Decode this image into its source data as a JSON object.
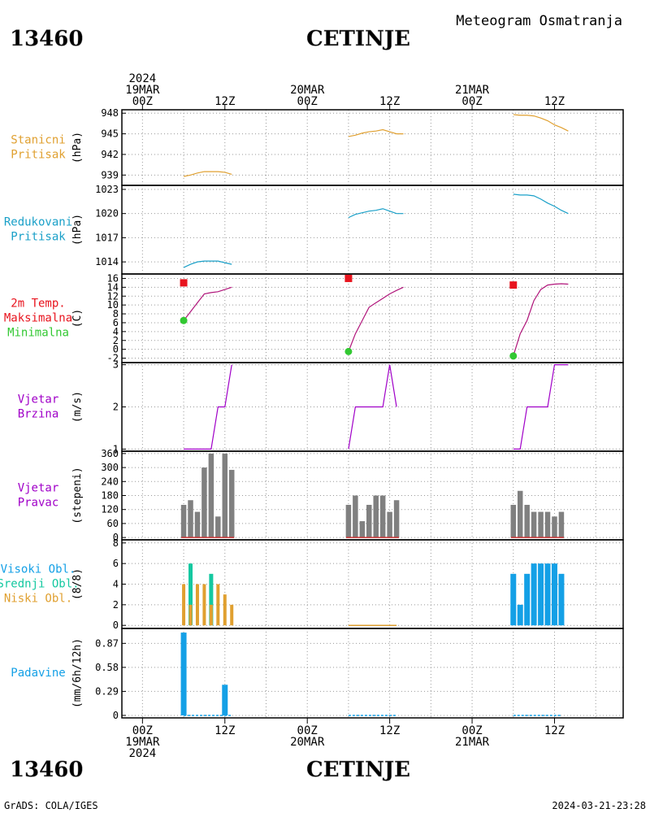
{
  "header": {
    "station_id": "13460",
    "station_name": "CETINJE",
    "subtitle": "Meteogram Osmatranja"
  },
  "footer": {
    "station_id": "13460",
    "station_name": "CETINJE",
    "credit": "GrADS: COLA/IGES",
    "timestamp": "2024-03-21-23:28"
  },
  "time_axis": {
    "ticks": [
      {
        "hour": 0,
        "labels": [
          "2024",
          "19MAR",
          "00Z"
        ],
        "bottom": [
          "00Z",
          "19MAR",
          "2024"
        ]
      },
      {
        "hour": 12,
        "labels": [
          "12Z"
        ],
        "bottom": [
          "12Z"
        ]
      },
      {
        "hour": 24,
        "labels": [
          "20MAR",
          "00Z"
        ],
        "bottom": [
          "00Z",
          "20MAR"
        ]
      },
      {
        "hour": 36,
        "labels": [
          "12Z"
        ],
        "bottom": [
          "12Z"
        ]
      },
      {
        "hour": 48,
        "labels": [
          "21MAR",
          "00Z"
        ],
        "bottom": [
          "00Z",
          "21MAR"
        ]
      },
      {
        "hour": 60,
        "labels": [
          "12Z"
        ],
        "bottom": [
          "12Z"
        ]
      }
    ],
    "range_hours": [
      -3,
      70
    ],
    "dotted_grid_hours": [
      0,
      6,
      12,
      18,
      24,
      30,
      36,
      42,
      48,
      54,
      60,
      66
    ]
  },
  "colors": {
    "station_pressure": "#e0a030",
    "reduced_pressure": "#1aa0c8",
    "temperature": "#b0147a",
    "max_temp": "#e8141e",
    "min_temp": "#32c832",
    "wind_speed": "#a000c8",
    "wind_dir_label": "#a000c8",
    "wind_dir_bar": "#808080",
    "high_clouds": "#14a0e6",
    "middle_clouds": "#14c8a0",
    "low_clouds": "#e0a030",
    "precip": "#14a0e6",
    "temp_label": "#e8141e"
  },
  "chart_data": [
    {
      "id": "station_pressure",
      "type": "line",
      "labels": [
        "Stanicni",
        "Pritisak"
      ],
      "ylabel": "(hPa)",
      "yticks": [
        939,
        942,
        945,
        948
      ],
      "ylim": [
        937.5,
        948.5
      ],
      "series": [
        {
          "x": [
            6,
            7,
            8,
            9,
            10,
            11,
            12,
            13
          ],
          "y": [
            938.8,
            939.0,
            939.3,
            939.5,
            939.5,
            939.5,
            939.4,
            939.1
          ]
        },
        {
          "x": [
            30,
            31,
            32,
            33,
            34,
            35,
            36,
            37,
            38
          ],
          "y": [
            944.6,
            944.8,
            945.1,
            945.3,
            945.4,
            945.6,
            945.3,
            945.0,
            945.0
          ]
        },
        {
          "x": [
            54,
            55,
            56,
            57,
            58,
            59,
            60,
            61,
            62
          ],
          "y": [
            947.8,
            947.7,
            947.7,
            947.6,
            947.3,
            946.9,
            946.3,
            945.9,
            945.4
          ]
        }
      ]
    },
    {
      "id": "reduced_pressure",
      "type": "line",
      "labels": [
        "Redukovani",
        "Pritisak"
      ],
      "ylabel": "(hPa)",
      "yticks": [
        1014,
        1017,
        1020,
        1023
      ],
      "ylim": [
        1012.5,
        1023.5
      ],
      "series": [
        {
          "x": [
            6,
            7,
            8,
            9,
            10,
            11,
            12,
            13
          ],
          "y": [
            1013.3,
            1013.7,
            1014.0,
            1014.1,
            1014.1,
            1014.1,
            1013.9,
            1013.7
          ]
        },
        {
          "x": [
            30,
            31,
            32,
            33,
            34,
            35,
            36,
            37,
            38
          ],
          "y": [
            1019.5,
            1019.9,
            1020.1,
            1020.3,
            1020.4,
            1020.6,
            1020.3,
            1020.0,
            1020.0
          ]
        },
        {
          "x": [
            54,
            55,
            56,
            57,
            58,
            59,
            60,
            61,
            62
          ],
          "y": [
            1022.4,
            1022.3,
            1022.3,
            1022.2,
            1021.8,
            1021.3,
            1020.9,
            1020.4,
            1020.0
          ]
        }
      ]
    },
    {
      "id": "temperature",
      "type": "line",
      "labels": [
        "2m Temp.",
        "Maksimalna",
        "Minimalna"
      ],
      "ylabel": "(C)",
      "yticks": [
        -2,
        0,
        2,
        4,
        6,
        8,
        10,
        12,
        14,
        16
      ],
      "ylim": [
        -3,
        17
      ],
      "series": [
        {
          "x": [
            6,
            7,
            8,
            9,
            10,
            11,
            12,
            13
          ],
          "y": [
            6.5,
            8.5,
            10.5,
            12.5,
            12.8,
            13.0,
            13.5,
            14.0
          ]
        },
        {
          "x": [
            30,
            31,
            32,
            33,
            34,
            35,
            36,
            37,
            38
          ],
          "y": [
            -0.5,
            3.5,
            6.5,
            9.5,
            10.5,
            11.5,
            12.5,
            13.3,
            14.0
          ]
        },
        {
          "x": [
            54,
            55,
            56,
            57,
            58,
            59,
            60,
            61,
            62
          ],
          "y": [
            -1.5,
            3.5,
            6.5,
            11.0,
            13.5,
            14.5,
            14.7,
            14.8,
            14.7
          ]
        }
      ],
      "max_points": [
        {
          "x": 6,
          "y": 15
        },
        {
          "x": 30,
          "y": 16
        },
        {
          "x": 54,
          "y": 14.5
        }
      ],
      "min_points": [
        {
          "x": 6,
          "y": 6.5
        },
        {
          "x": 30,
          "y": -0.5
        },
        {
          "x": 54,
          "y": -1.5
        }
      ]
    },
    {
      "id": "wind_speed",
      "type": "line",
      "labels": [
        "Vjetar",
        "Brzina"
      ],
      "ylabel": "(m/s)",
      "yticks": [
        1,
        2,
        3
      ],
      "ylim": [
        0.95,
        3.05
      ],
      "series": [
        {
          "x": [
            6,
            7,
            8,
            9,
            10,
            11,
            12,
            13
          ],
          "y": [
            1,
            1,
            1,
            1,
            1,
            2,
            2,
            3
          ]
        },
        {
          "x": [
            30,
            31,
            32,
            33,
            34,
            35,
            36,
            37
          ],
          "y": [
            1,
            2,
            2,
            2,
            2,
            2,
            3,
            2
          ]
        },
        {
          "x": [
            54,
            55,
            56,
            57,
            58,
            59,
            60,
            61,
            62
          ],
          "y": [
            1,
            1,
            2,
            2,
            2,
            2,
            3,
            3,
            3
          ]
        }
      ]
    },
    {
      "id": "wind_direction",
      "type": "bar",
      "labels": [
        "Vjetar",
        "Pravac"
      ],
      "ylabel": "(stepeni)",
      "yticks": [
        0,
        60,
        120,
        180,
        240,
        300,
        360
      ],
      "ylim": [
        -10,
        370
      ],
      "x": [
        6,
        7,
        8,
        9,
        10,
        11,
        12,
        13,
        30,
        31,
        32,
        33,
        34,
        35,
        36,
        37,
        54,
        55,
        56,
        57,
        58,
        59,
        60,
        61
      ],
      "values": [
        140,
        160,
        110,
        300,
        360,
        90,
        360,
        290,
        140,
        180,
        70,
        140,
        180,
        180,
        110,
        160,
        140,
        200,
        140,
        110,
        110,
        110,
        90,
        110
      ]
    },
    {
      "id": "clouds",
      "type": "bar",
      "labels": [
        "Visoki Obl.",
        "Srednji Obl.",
        "Niski Obl."
      ],
      "ylabel": "(8/8)",
      "yticks": [
        0,
        2,
        4,
        6,
        8
      ],
      "ylim": [
        -0.3,
        8.3
      ],
      "series": [
        {
          "name": "Visoki Obl.",
          "x": [
            54,
            55,
            56,
            57,
            58,
            59,
            60,
            61
          ],
          "values": [
            5,
            2,
            5,
            6,
            6,
            6,
            6,
            5
          ]
        },
        {
          "name": "Srednji Obl.",
          "x": [
            7,
            10
          ],
          "values": [
            6,
            5
          ]
        },
        {
          "name": "Niski Obl.",
          "x": [
            6,
            7,
            8,
            9,
            10,
            11,
            12,
            13
          ],
          "values": [
            4,
            2,
            4,
            4,
            2,
            4,
            3,
            2
          ]
        }
      ]
    },
    {
      "id": "precipitation",
      "type": "bar",
      "labels": [
        "Padavine"
      ],
      "ylabel": "(mm/6h/12h)",
      "yticks": [
        0,
        0.29,
        0.58,
        0.87
      ],
      "ytick_labels": [
        "0",
        "0.29",
        "0.58",
        "0.87"
      ],
      "ylim": [
        -0.03,
        1.05
      ],
      "x": [
        6,
        12
      ],
      "values": [
        1.0,
        0.37
      ],
      "trace_spans": [
        [
          6,
          13
        ],
        [
          30,
          37
        ],
        [
          54,
          61
        ]
      ]
    }
  ]
}
